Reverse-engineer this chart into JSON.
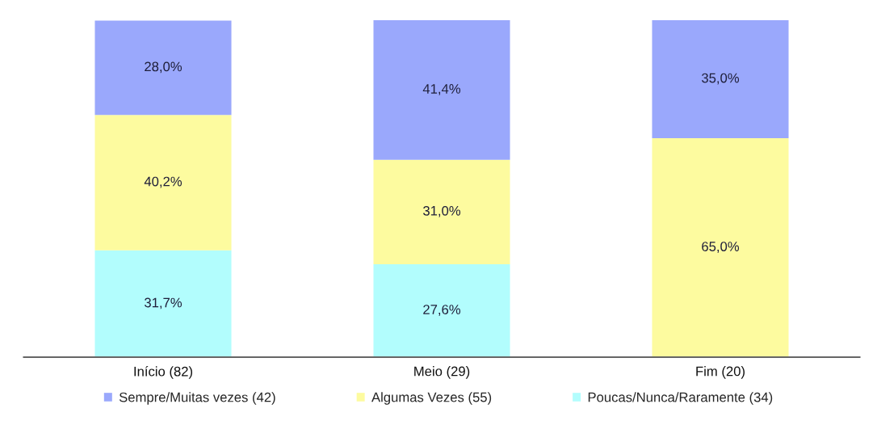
{
  "chart_data": {
    "type": "bar",
    "stacked": true,
    "categories": [
      "Início (82)",
      "Meio (29)",
      "Fim (20)"
    ],
    "series": [
      {
        "name": "Poucas/Nunca/Raramente (34)",
        "color": "#b2fdfd",
        "values": [
          31.7,
          27.6,
          null
        ],
        "value_labels": [
          "31,7%",
          "27,6%",
          null
        ]
      },
      {
        "name": "Algumas Vezes (55)",
        "color": "#fdfb9f",
        "values": [
          40.2,
          31.0,
          65.0
        ],
        "value_labels": [
          "40,2%",
          "31,0%",
          "65,0%"
        ]
      },
      {
        "name": "Sempre/Muitas vezes (42)",
        "color": "#9aa8fc",
        "values": [
          28.0,
          41.4,
          35.0
        ],
        "value_labels": [
          "28,0%",
          "41,4%",
          "35,0%"
        ]
      }
    ],
    "legend": "bottom",
    "grid": false
  }
}
